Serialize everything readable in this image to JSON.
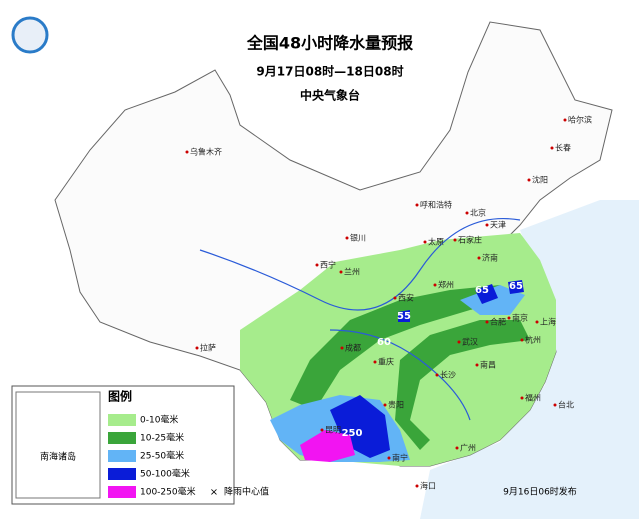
{
  "header": {
    "title": "全国48小时降水量预报",
    "period": "9月17日08时—18日08时",
    "issuer": "中央气象台"
  },
  "legend": {
    "title": "图例",
    "items": [
      {
        "label": "0-10毫米",
        "color": "#a6ec8c"
      },
      {
        "label": "10-25毫米",
        "color": "#3aa53a"
      },
      {
        "label": "25-50毫米",
        "color": "#62b4f6"
      },
      {
        "label": "50-100毫米",
        "color": "#0a1cd8"
      },
      {
        "label": "100-250毫米",
        "color": "#f214f2"
      }
    ],
    "center_label": "降雨中心值"
  },
  "inset": {
    "label": "南海诸岛"
  },
  "cities": [
    "乌鲁木齐",
    "哈尔滨",
    "长春",
    "沈阳",
    "呼和浩特",
    "北京",
    "天津",
    "石家庄",
    "太原",
    "银川",
    "济南",
    "西宁",
    "兰州",
    "郑州",
    "西安",
    "南京",
    "合肥",
    "上海",
    "拉萨",
    "成都",
    "武汉",
    "杭州",
    "重庆",
    "长沙",
    "南昌",
    "贵阳",
    "福州",
    "台北",
    "昆明",
    "南宁",
    "广州",
    "海口"
  ],
  "centers": [
    65,
    65,
    55,
    60,
    250
  ],
  "footer": {
    "issued": "9月16日06时发布"
  }
}
